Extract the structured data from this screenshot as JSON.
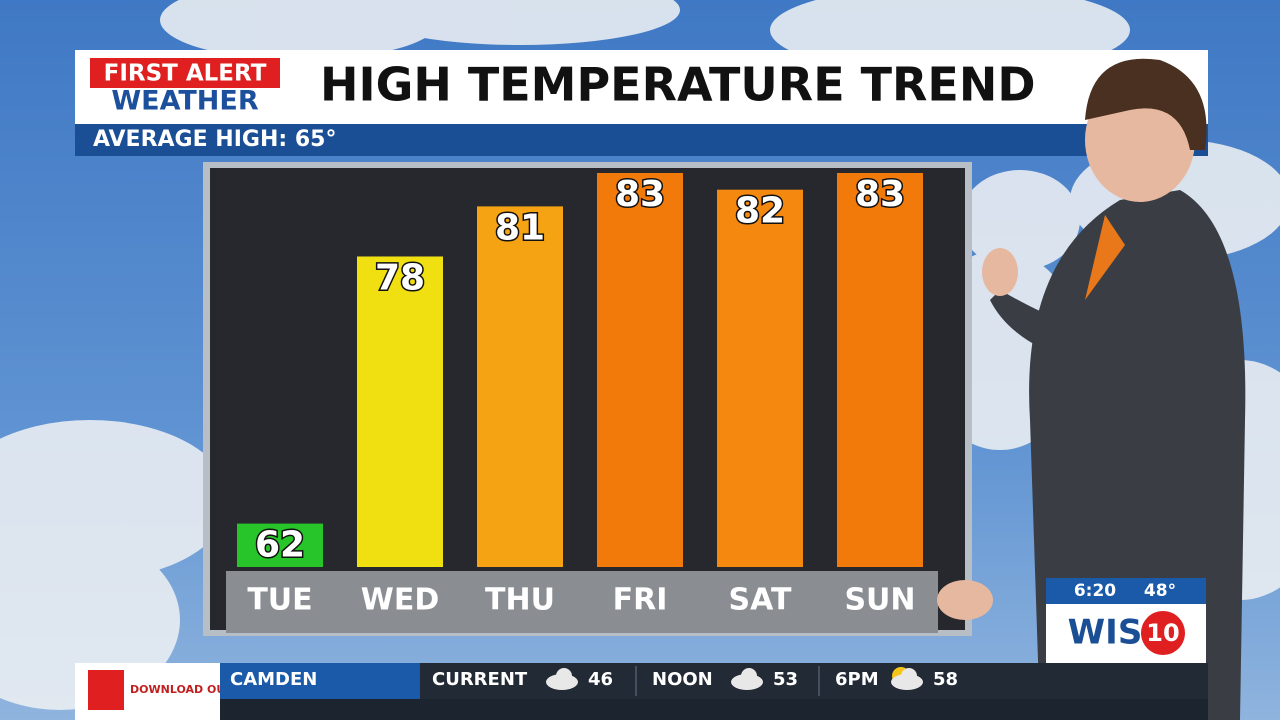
{
  "header": {
    "brand_top": "FIRST ALERT",
    "brand_bottom": "WEATHER"
  },
  "chart_data": {
    "type": "bar",
    "title": "HIGH TEMPERATURE TREND",
    "subtitle": "AVERAGE HIGH: 65°",
    "categories": [
      "TUE",
      "WED",
      "THU",
      "FRI",
      "SAT",
      "SUN"
    ],
    "values": [
      62,
      78,
      81,
      83,
      82,
      83
    ],
    "colors": [
      "#27c52a",
      "#f0e012",
      "#f5a312",
      "#f27a0b",
      "#f5880f",
      "#f27a0b"
    ],
    "ylim": [
      59.4,
      83
    ]
  },
  "bug": {
    "time": "6:20",
    "temp": "48°",
    "station": "WIS",
    "channel": "10"
  },
  "ticker": {
    "app": "DOWNLOAD OUR WEATHER APP",
    "city": "CAMDEN",
    "items": [
      {
        "label": "CURRENT",
        "value": 46
      },
      {
        "label": "NOON",
        "value": 53
      },
      {
        "label": "6PM",
        "value": 58
      }
    ]
  }
}
